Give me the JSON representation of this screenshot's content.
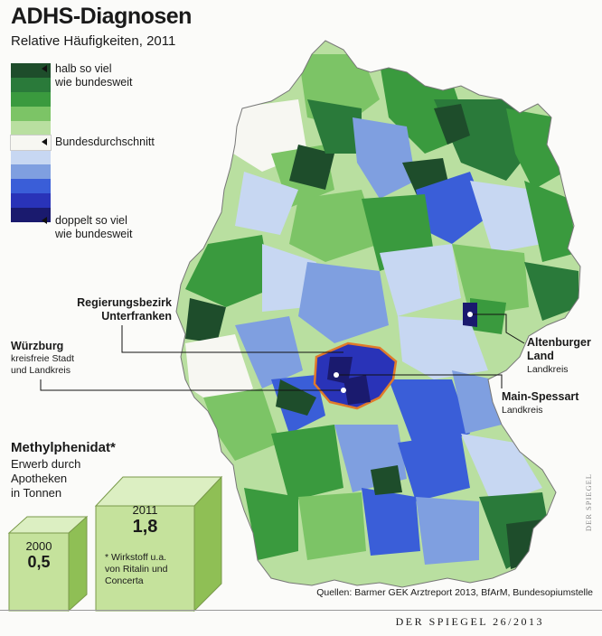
{
  "header": {
    "title": "ADHS-Diagnosen",
    "subtitle": "Relative Häufigkeiten, 2011"
  },
  "legend": {
    "colors": [
      "#1e4d2b",
      "#2a7a3a",
      "#3a9a3e",
      "#7cc466",
      "#b9dfa0",
      "#f7f7f2",
      "#c7d7f2",
      "#7f9fe0",
      "#3a5ed8",
      "#2933b8",
      "#1a1a6e"
    ],
    "label_low": "halb so viel\nwie bundesweit",
    "label_mid": "Bundesdurchschnitt",
    "label_high": "doppelt so viel\nwie bundesweit"
  },
  "annotations": {
    "unterfranken": "Regierungsbezirk\nUnterfranken",
    "wuerzburg_title": "Würzburg",
    "wuerzburg_sub": "kreisfreie Stadt\nund Landkreis",
    "altenburger_title": "Altenburger\nLand",
    "altenburger_sub": "Landkreis",
    "mainspessart_title": "Main-Spessart",
    "mainspessart_sub": "Landkreis"
  },
  "methylphenidat": {
    "title": "Methylphenidat*",
    "subtitle": "Erwerb durch\nApotheken\nin Tonnen",
    "year_2000": "2000",
    "value_2000": "0,5",
    "year_2011": "2011",
    "value_2011": "1,8",
    "footnote": "* Wirkstoff u.a.\nvon Ritalin und\nConcerta",
    "values": [
      {
        "year": 2000,
        "tonnes": 0.5
      },
      {
        "year": 2011,
        "tonnes": 1.8
      }
    ]
  },
  "sources": "Quellen: Barmer GEK Arztreport 2013, BfArM, Bundesopiumstelle",
  "footer": "DER SPIEGEL 26/2013",
  "credit": "DER SPIEGEL"
}
